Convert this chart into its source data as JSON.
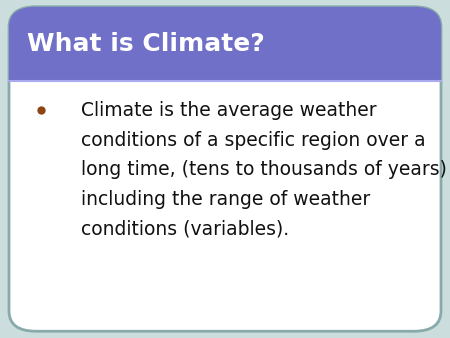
{
  "title": "What is Climate?",
  "title_bg_color": "#7070C8",
  "title_text_color": "#FFFFFF",
  "title_fontsize": 18,
  "body_bg_color": "#FFFFFF",
  "slide_bg_color": "#CCDDDD",
  "border_color": "#88AAAA",
  "bullet_color": "#8B4513",
  "bullet_fontsize": 13.5,
  "text_color": "#111111",
  "separator_color": "#AAAAEE",
  "bullet_lines": [
    "Climate is the average weather",
    "conditions of a specific region over a",
    "long time, (tens to thousands of years)",
    "including the range of weather",
    "conditions (variables)."
  ]
}
